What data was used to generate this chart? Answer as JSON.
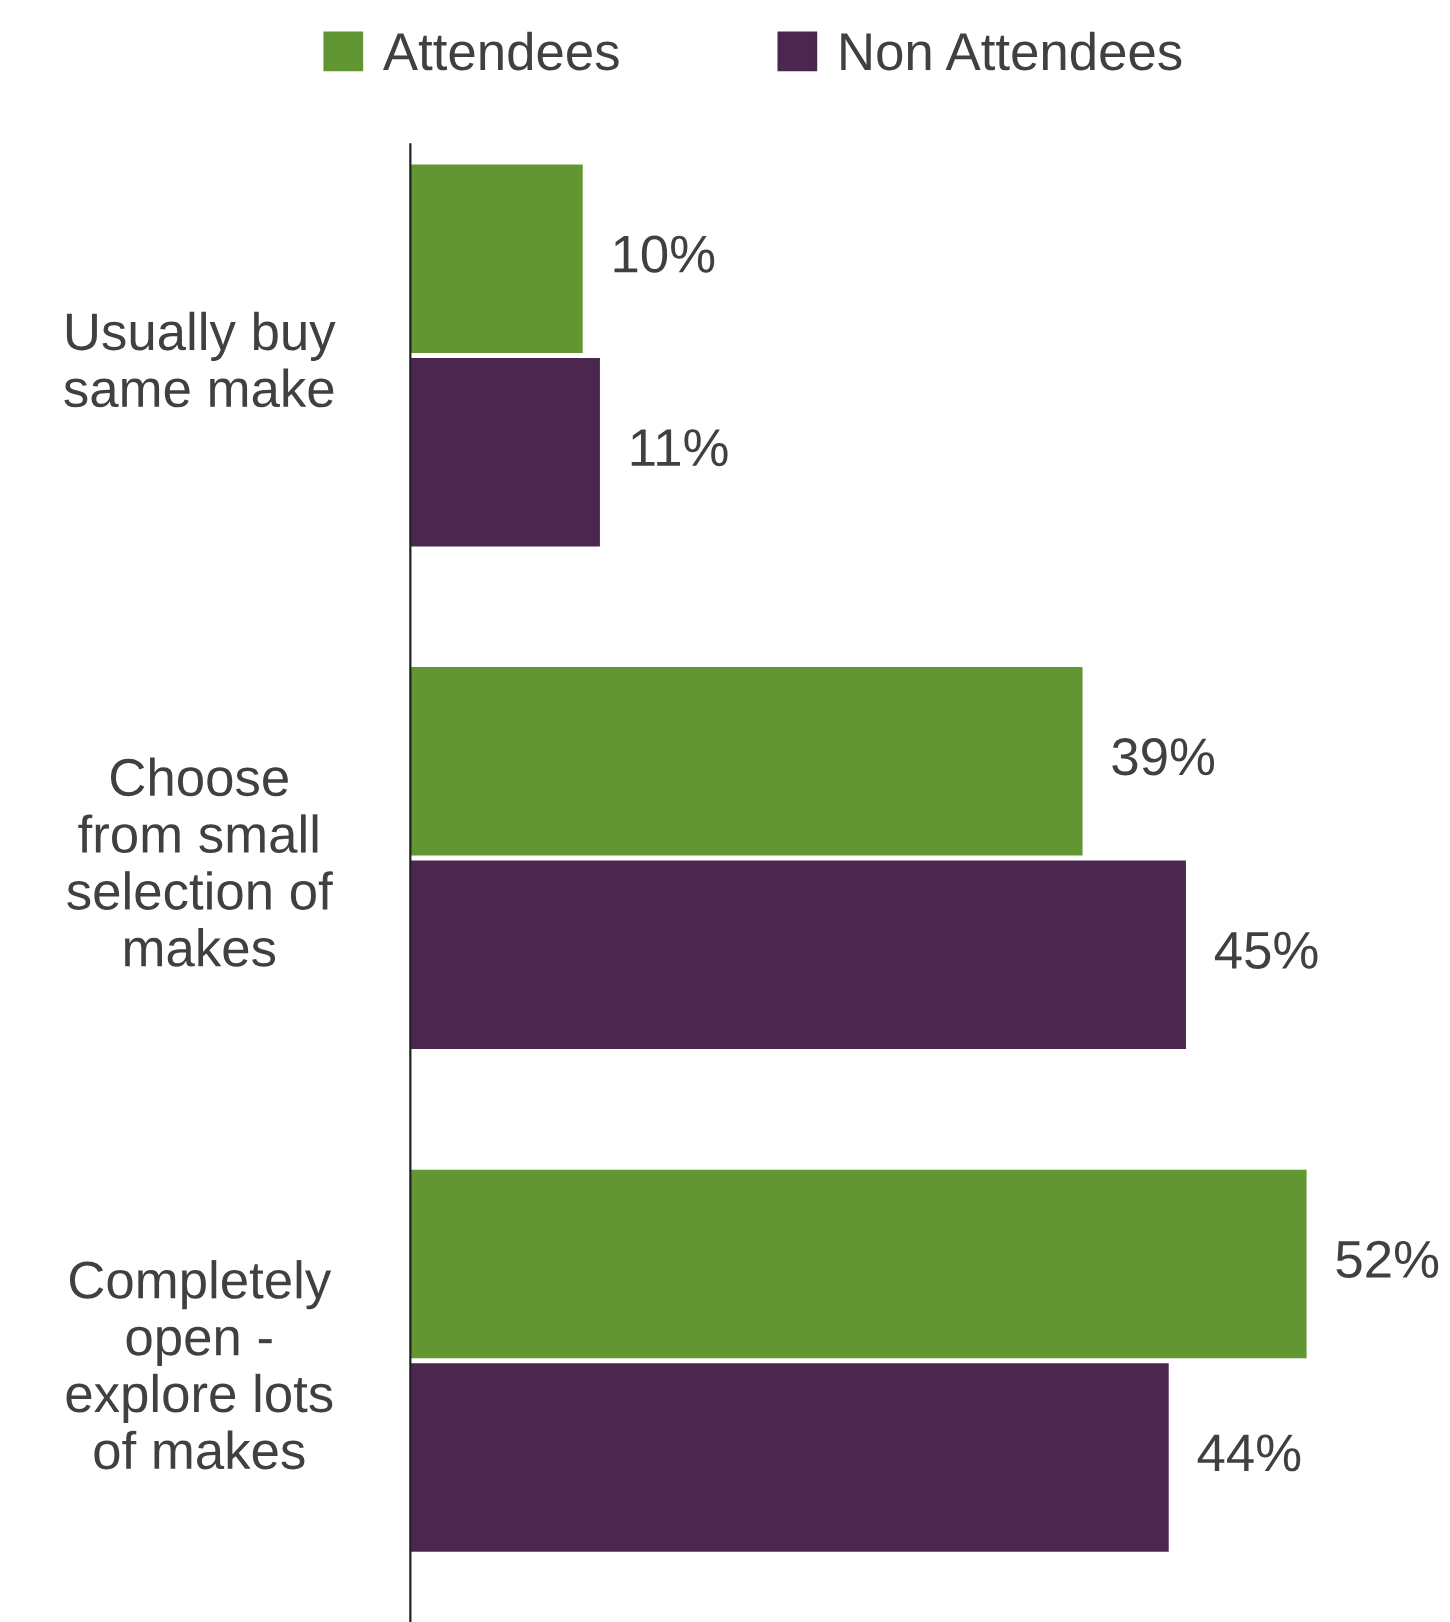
{
  "chart_data": {
    "type": "bar",
    "orientation": "horizontal",
    "legend": "top",
    "categories": [
      "Usually buy\nsame make",
      "Choose\nfrom small\nselection of\nmakes",
      "Completely\nopen -\nexplore lots\nof makes"
    ],
    "series": [
      {
        "name": "Attendees",
        "color": "#629632",
        "values": [
          10,
          39,
          52
        ],
        "value_labels": [
          "10%",
          "39%",
          "52%"
        ]
      },
      {
        "name": "Non Attendees",
        "color": "#4b2750",
        "values": [
          11,
          45,
          44
        ],
        "value_labels": [
          "11%",
          "45%",
          "44%"
        ]
      }
    ]
  }
}
